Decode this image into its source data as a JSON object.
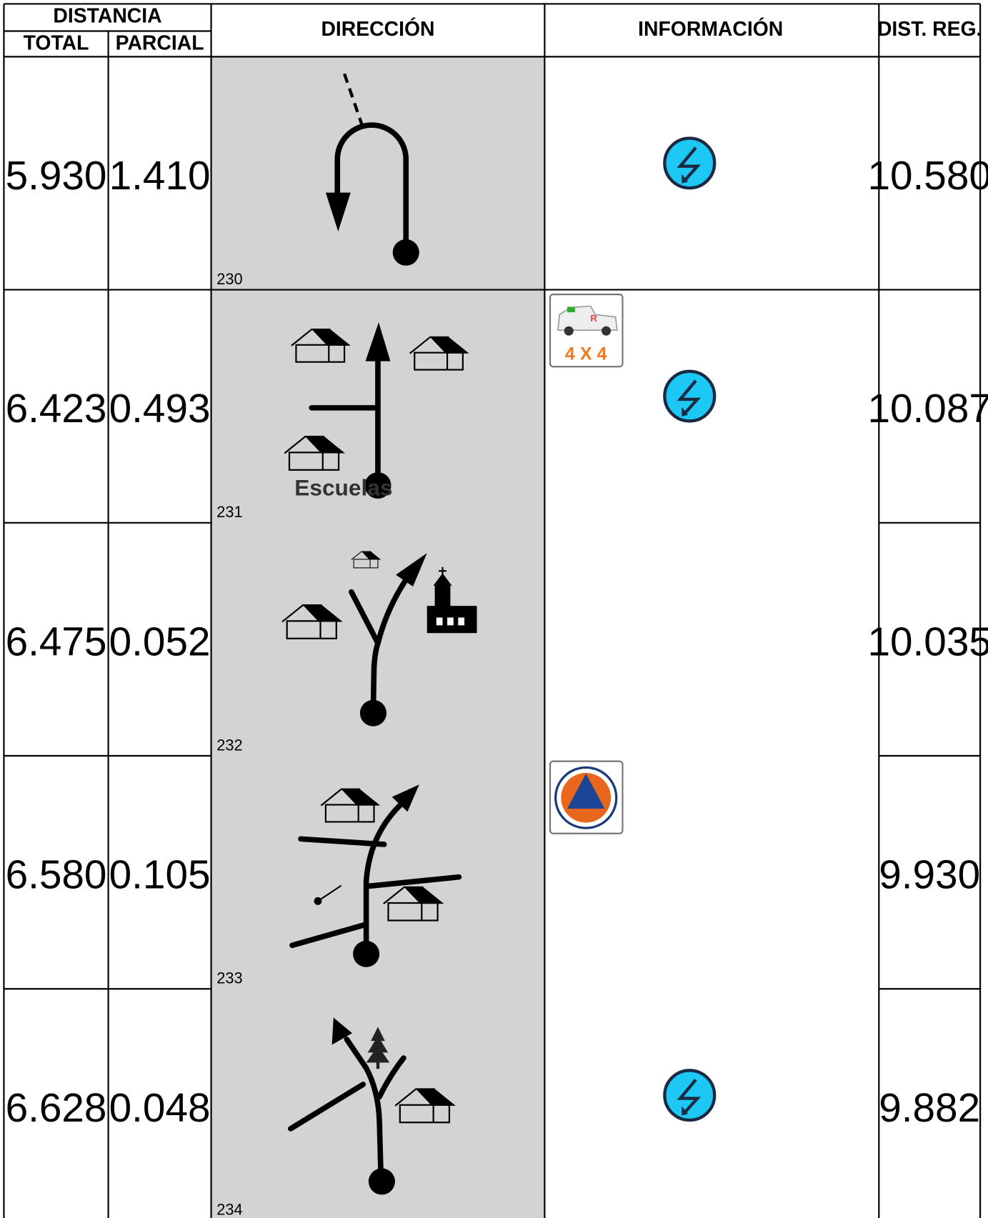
{
  "header": {
    "distance": "DISTANCIA",
    "total": "TOTAL",
    "partial": "PARCIAL",
    "direction": "DIRECCIÓN",
    "information": "INFORMACIÓN",
    "reg_distance": "DIST. REG."
  },
  "rows": [
    {
      "total": "5.930",
      "partial": "1.410",
      "step": "230",
      "reg_distance": "10.580"
    },
    {
      "total": "6.423",
      "partial": "0.493",
      "step": "231",
      "label": "Escuelas",
      "badge": "4 X 4",
      "reg_distance": "10.087"
    },
    {
      "total": "6.475",
      "partial": "0.052",
      "step": "232",
      "reg_distance": "10.035"
    },
    {
      "total": "6.580",
      "partial": "0.105",
      "step": "233",
      "reg_distance": "9.930"
    },
    {
      "total": "6.628",
      "partial": "0.048",
      "step": "234",
      "reg_distance": "9.882"
    }
  ]
}
